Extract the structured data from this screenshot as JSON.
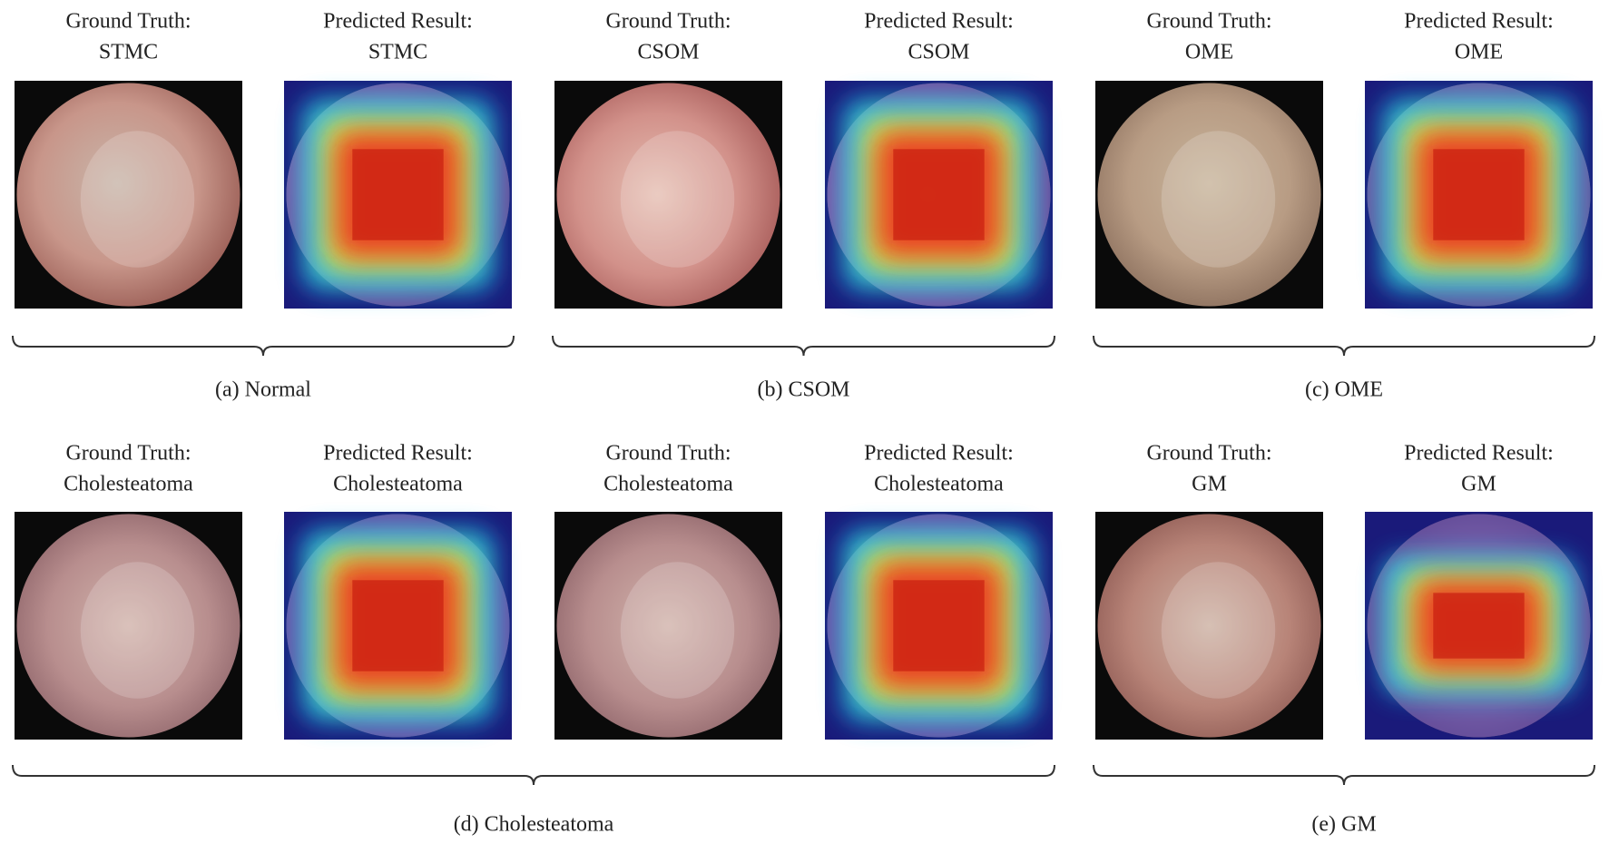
{
  "rows": [
    {
      "panels": [
        {
          "title": "Ground Truth:",
          "label": "STMC"
        },
        {
          "title": "Predicted Result:",
          "label": "STMC"
        },
        {
          "title": "Ground Truth:",
          "label": "CSOM"
        },
        {
          "title": "Predicted Result:",
          "label": "CSOM"
        },
        {
          "title": "Ground Truth:",
          "label": "OME"
        },
        {
          "title": "Predicted Result:",
          "label": "OME"
        }
      ],
      "groups": [
        {
          "caption": "(a) Normal"
        },
        {
          "caption": "(b) CSOM"
        },
        {
          "caption": "(c) OME"
        }
      ]
    },
    {
      "panels": [
        {
          "title": "Ground Truth:",
          "label": "Cholesteatoma"
        },
        {
          "title": "Predicted Result:",
          "label": "Cholesteatoma"
        },
        {
          "title": "Ground Truth:",
          "label": "Cholesteatoma"
        },
        {
          "title": "Predicted Result:",
          "label": "Cholesteatoma"
        },
        {
          "title": "Ground Truth:",
          "label": "GM"
        },
        {
          "title": "Predicted Result:",
          "label": "GM"
        }
      ],
      "groups": [
        {
          "caption": "(d) Cholesteatoma"
        },
        {
          "caption": "(e) GM"
        }
      ]
    }
  ]
}
